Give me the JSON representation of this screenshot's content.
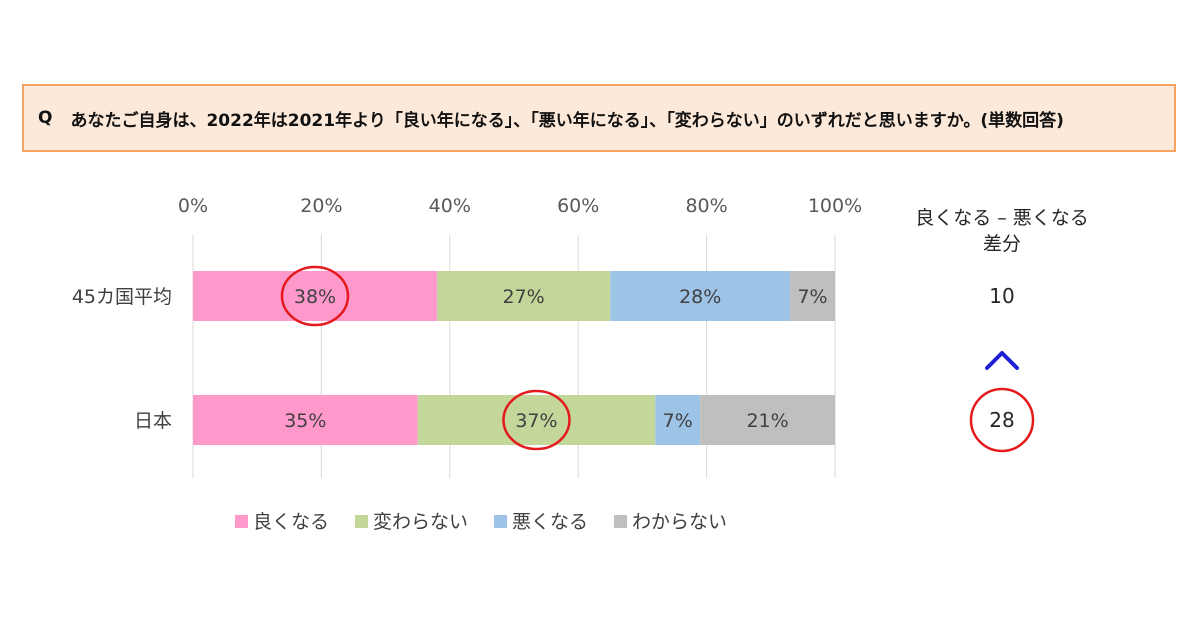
{
  "question": {
    "prefix": "Q",
    "text": "あなたご自身は、2022年は2021年より「良い年になる」、「悪い年になる」、「変わらない」のいずれだと思いますか。(単数回答)"
  },
  "difference_panel": {
    "header_line1": "良くなる – 悪くなる",
    "header_line2": "差分",
    "values": [
      "10",
      "28"
    ],
    "comparison_symbol": "^",
    "highlight_color": "#e41a1c",
    "arrow_color": "#1f1fd6"
  },
  "chart_data": {
    "type": "bar",
    "orientation": "horizontal",
    "stacked": true,
    "categories": [
      "45カ国平均",
      "日本"
    ],
    "series": [
      {
        "name": "良くなる",
        "values": [
          38,
          35
        ],
        "labels": [
          "38%",
          "35%"
        ],
        "color": "#ff99cc"
      },
      {
        "name": "変わらない",
        "values": [
          27,
          37
        ],
        "labels": [
          "27%",
          "37%"
        ],
        "color": "#c4d79b"
      },
      {
        "name": "悪くなる",
        "values": [
          28,
          7
        ],
        "labels": [
          "28%",
          "7%"
        ],
        "color": "#9dc3e6"
      },
      {
        "name": "わからない",
        "values": [
          7,
          21
        ],
        "labels": [
          "7%",
          "21%"
        ],
        "color": "#bfbfbf"
      }
    ],
    "xlim": [
      0,
      100
    ],
    "xticks": [
      "0%",
      "20%",
      "40%",
      "60%",
      "80%",
      "100%"
    ],
    "grid": true,
    "legend_position": "bottom",
    "highlighted": [
      {
        "category": "45カ国平均",
        "series": "良くなる"
      },
      {
        "category": "日本",
        "series": "変わらない"
      }
    ]
  }
}
